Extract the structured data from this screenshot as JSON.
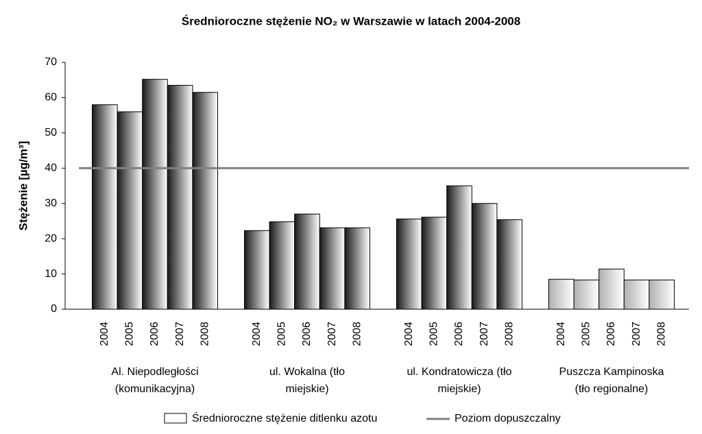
{
  "chart_data": {
    "type": "grouped_bar",
    "title": "Średnioroczne stężenie NO₂ w Warszawie w latach 2004-2008",
    "y_label": "Stężenie [µg/m³]",
    "ylim": [
      0,
      70
    ],
    "yticks": [
      0,
      10,
      20,
      30,
      40,
      50,
      60,
      70
    ],
    "series_name": "Średnioroczne stężenie ditlenku azotu",
    "groups": [
      {
        "label_lines": [
          "Al. Niepodległości",
          "(komunikacyjna)"
        ],
        "categories": [
          "2004",
          "2005",
          "2006",
          "2007",
          "2008"
        ],
        "values": [
          58,
          56,
          65.2,
          63.5,
          61.5
        ],
        "gradient": [
          "#1a1a1a",
          "#ffffff"
        ]
      },
      {
        "label_lines": [
          "ul. Wokalna (tło",
          "miejskie)"
        ],
        "categories": [
          "2004",
          "2005",
          "2006",
          "2007",
          "2008"
        ],
        "values": [
          22.3,
          24.8,
          27,
          23.1,
          23.1
        ],
        "gradient": [
          "#1a1a1a",
          "#ffffff"
        ]
      },
      {
        "label_lines": [
          "ul. Kondratowicza (tło",
          "miejskie)"
        ],
        "categories": [
          "2004",
          "2005",
          "2006",
          "2007",
          "2008"
        ],
        "values": [
          25.6,
          26.1,
          35,
          30,
          25.4
        ],
        "gradient": [
          "#1a1a1a",
          "#ffffff"
        ]
      },
      {
        "label_lines": [
          "Puszcza Kampinoska",
          "(tło regionalne)"
        ],
        "categories": [
          "2004",
          "2005",
          "2006",
          "2007",
          "2008"
        ],
        "values": [
          8.5,
          8.3,
          11.4,
          8.3,
          8.3
        ],
        "gradient": [
          "#b0b0b0",
          "#ffffff"
        ]
      }
    ],
    "reference_line": {
      "name": "Poziom dopuszczalny",
      "value": 40,
      "color": "#808080"
    }
  }
}
